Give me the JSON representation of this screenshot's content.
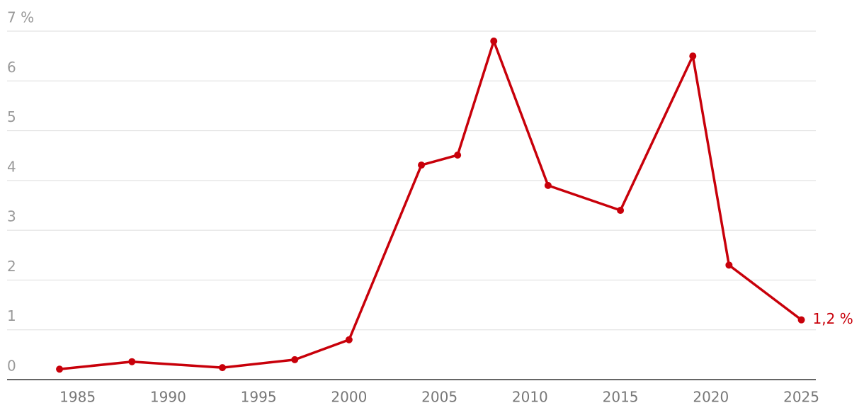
{
  "chart_data": {
    "type": "line",
    "x": [
      1984,
      1988,
      1993,
      1997,
      2000,
      2004,
      2006,
      2008,
      2011,
      2015,
      2019,
      2021,
      2025
    ],
    "series": [
      {
        "color": "#c8000a",
        "values": [
          0.21,
          0.36,
          0.24,
          0.4,
          0.8,
          4.31,
          4.51,
          6.8,
          3.9,
          3.4,
          6.5,
          2.3,
          1.2
        ],
        "value_labels": [
          null,
          null,
          null,
          null,
          null,
          null,
          null,
          null,
          null,
          null,
          null,
          null,
          "1,2 %"
        ]
      }
    ],
    "xlim": [
      1981.1,
      2025.8
    ],
    "xticks": [
      1985,
      1990,
      1995,
      2000,
      2005,
      2010,
      2015,
      2020,
      2025
    ],
    "ylim": [
      0,
      7
    ],
    "yticks": [
      0,
      1,
      2,
      3,
      4,
      5,
      6,
      {
        "value": 7,
        "label": "7 %"
      }
    ],
    "grid": true
  }
}
